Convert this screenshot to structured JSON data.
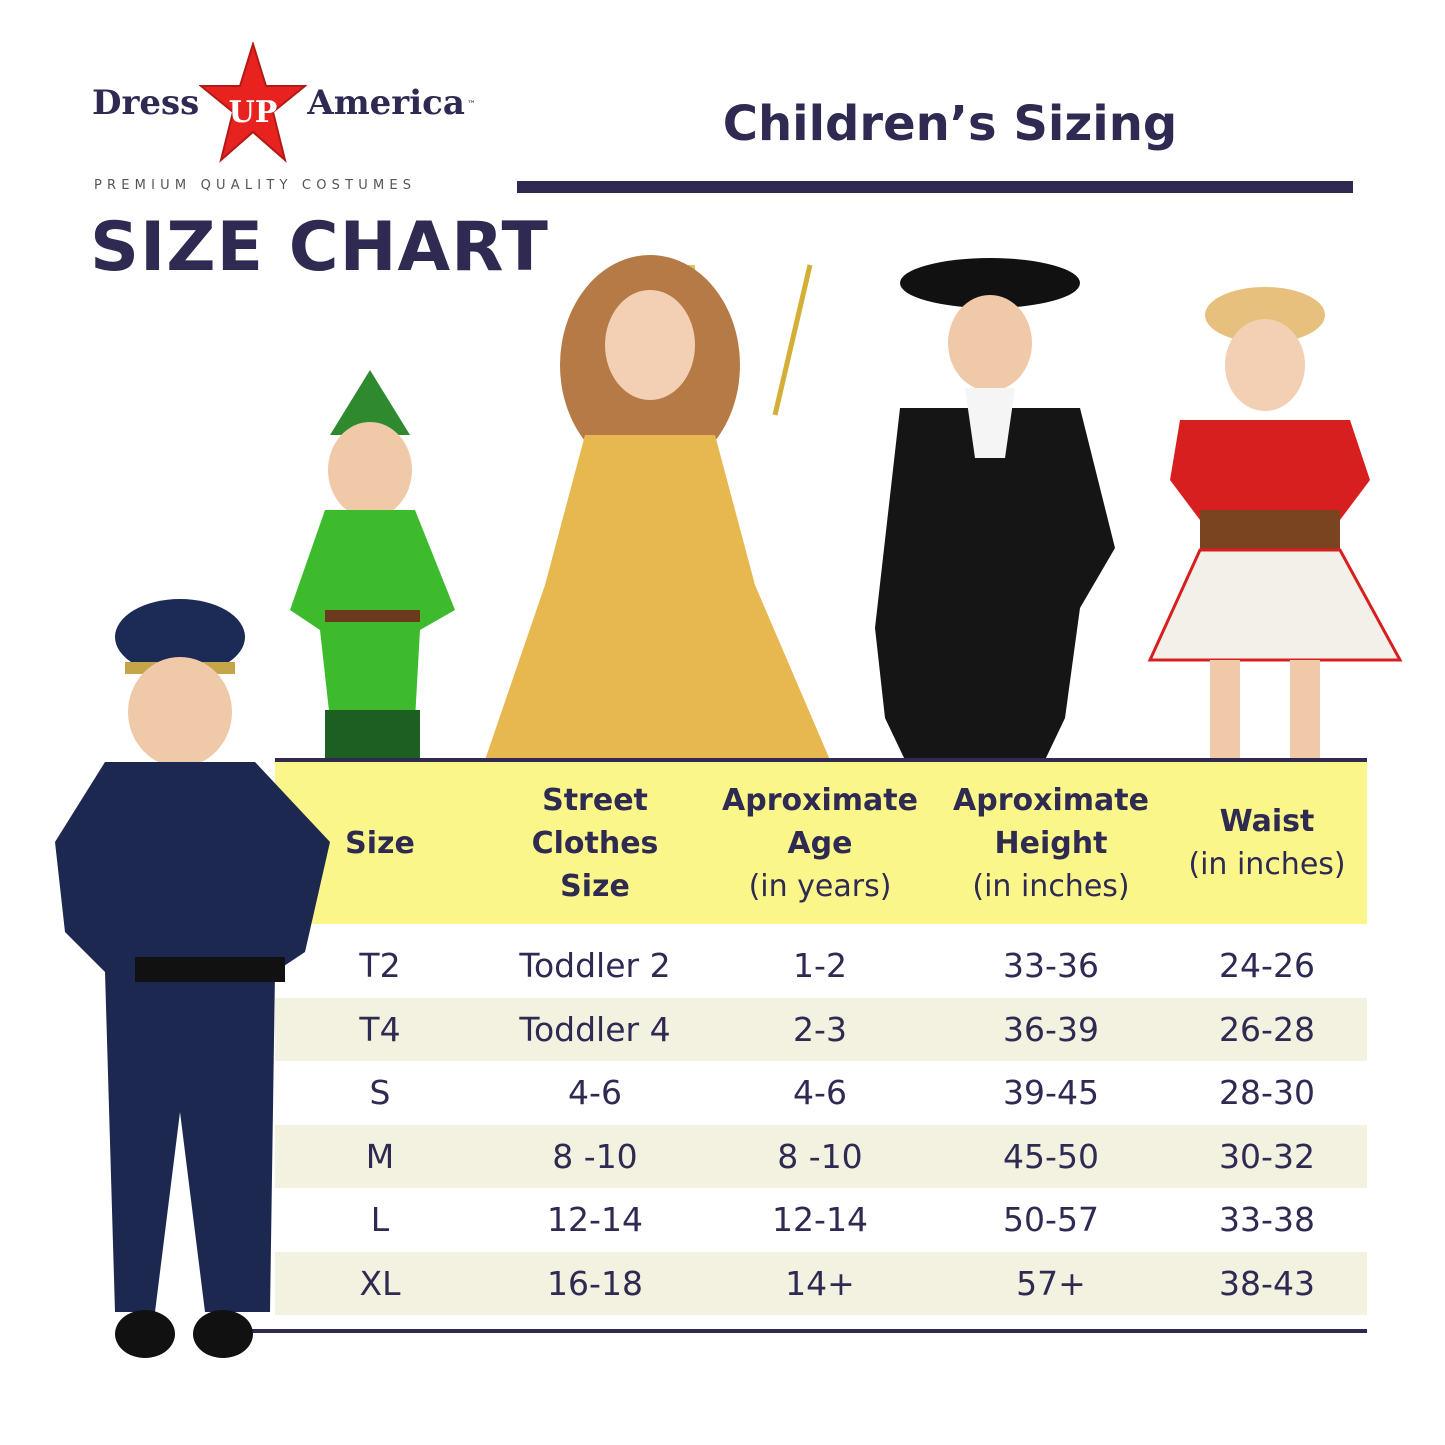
{
  "brand": {
    "logo_left": "Dress",
    "logo_star": "UP",
    "logo_right": "America",
    "trademark": "™",
    "tagline": "PREMIUM QUALITY COSTUMES",
    "star_color": "#e8231f"
  },
  "heading": "SIZE CHART",
  "title": "Children’s Sizing",
  "colors": {
    "text": "#2e2a52",
    "header_bg": "#faf689",
    "alt_row": "#f3f1e0"
  },
  "photos": [
    "peter-pan-costume",
    "princess-costume",
    "colonial-costume",
    "cowgirl-costume",
    "police-costume"
  ],
  "table": {
    "headers": [
      {
        "bold": "Size",
        "sub": ""
      },
      {
        "bold": "Street Clothes Size",
        "sub": ""
      },
      {
        "bold": "Aproximate Age",
        "sub": "(in years)"
      },
      {
        "bold": "Aproximate Height",
        "sub": "(in inches)"
      },
      {
        "bold": "Waist",
        "sub": "(in inches)"
      }
    ],
    "header_lines": [
      [
        "Size"
      ],
      [
        "Street",
        "Clothes",
        "Size"
      ],
      [
        "Aproximate",
        "Age"
      ],
      [
        "Aproximate",
        "Height"
      ],
      [
        "Waist"
      ]
    ],
    "rows": [
      [
        "T2",
        "Toddler 2",
        "1-2",
        "33-36",
        "24-26"
      ],
      [
        "T4",
        "Toddler 4",
        "2-3",
        "36-39",
        "26-28"
      ],
      [
        "S",
        "4-6",
        "4-6",
        "39-45",
        "28-30"
      ],
      [
        "M",
        "8 -10",
        "8 -10",
        "45-50",
        "30-32"
      ],
      [
        "L",
        "12-14",
        "12-14",
        "50-57",
        "33-38"
      ],
      [
        "XL",
        "16-18",
        "14+",
        "57+",
        "38-43"
      ]
    ]
  }
}
